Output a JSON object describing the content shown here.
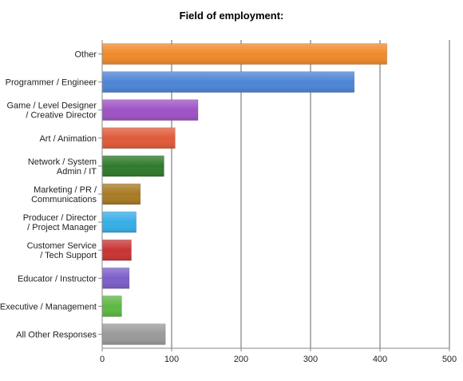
{
  "chart_data": {
    "type": "bar",
    "orientation": "horizontal",
    "title": "Field of employment:",
    "xlabel": "",
    "ylabel": "",
    "xlim": [
      0,
      500
    ],
    "x_ticks": [
      "0",
      "100",
      "200",
      "300",
      "400",
      "500"
    ],
    "grid": true,
    "legend": "none",
    "categories": [
      [
        "Other"
      ],
      [
        "Programmer / Engineer"
      ],
      [
        "Game / Level Designer",
        "/ Creative Director"
      ],
      [
        "Art / Animation"
      ],
      [
        "Network / System",
        "Admin / IT"
      ],
      [
        "Marketing / PR /",
        "Communications"
      ],
      [
        "Producer / Director",
        "/ Project Manager"
      ],
      [
        "Customer Service",
        "/ Tech Support"
      ],
      [
        "Educator / Instructor"
      ],
      [
        "Executive / Management"
      ],
      [
        "All Other Responses"
      ]
    ],
    "values": [
      410,
      363,
      138,
      105,
      89,
      55,
      49,
      42,
      39,
      28,
      91
    ],
    "colors": [
      "#ef8a2b",
      "#4d84d6",
      "#9e52c4",
      "#e05a3a",
      "#2f7a2c",
      "#a87a23",
      "#36aee8",
      "#c93434",
      "#7c5fc8",
      "#5db843",
      "#9a9a9a"
    ]
  }
}
